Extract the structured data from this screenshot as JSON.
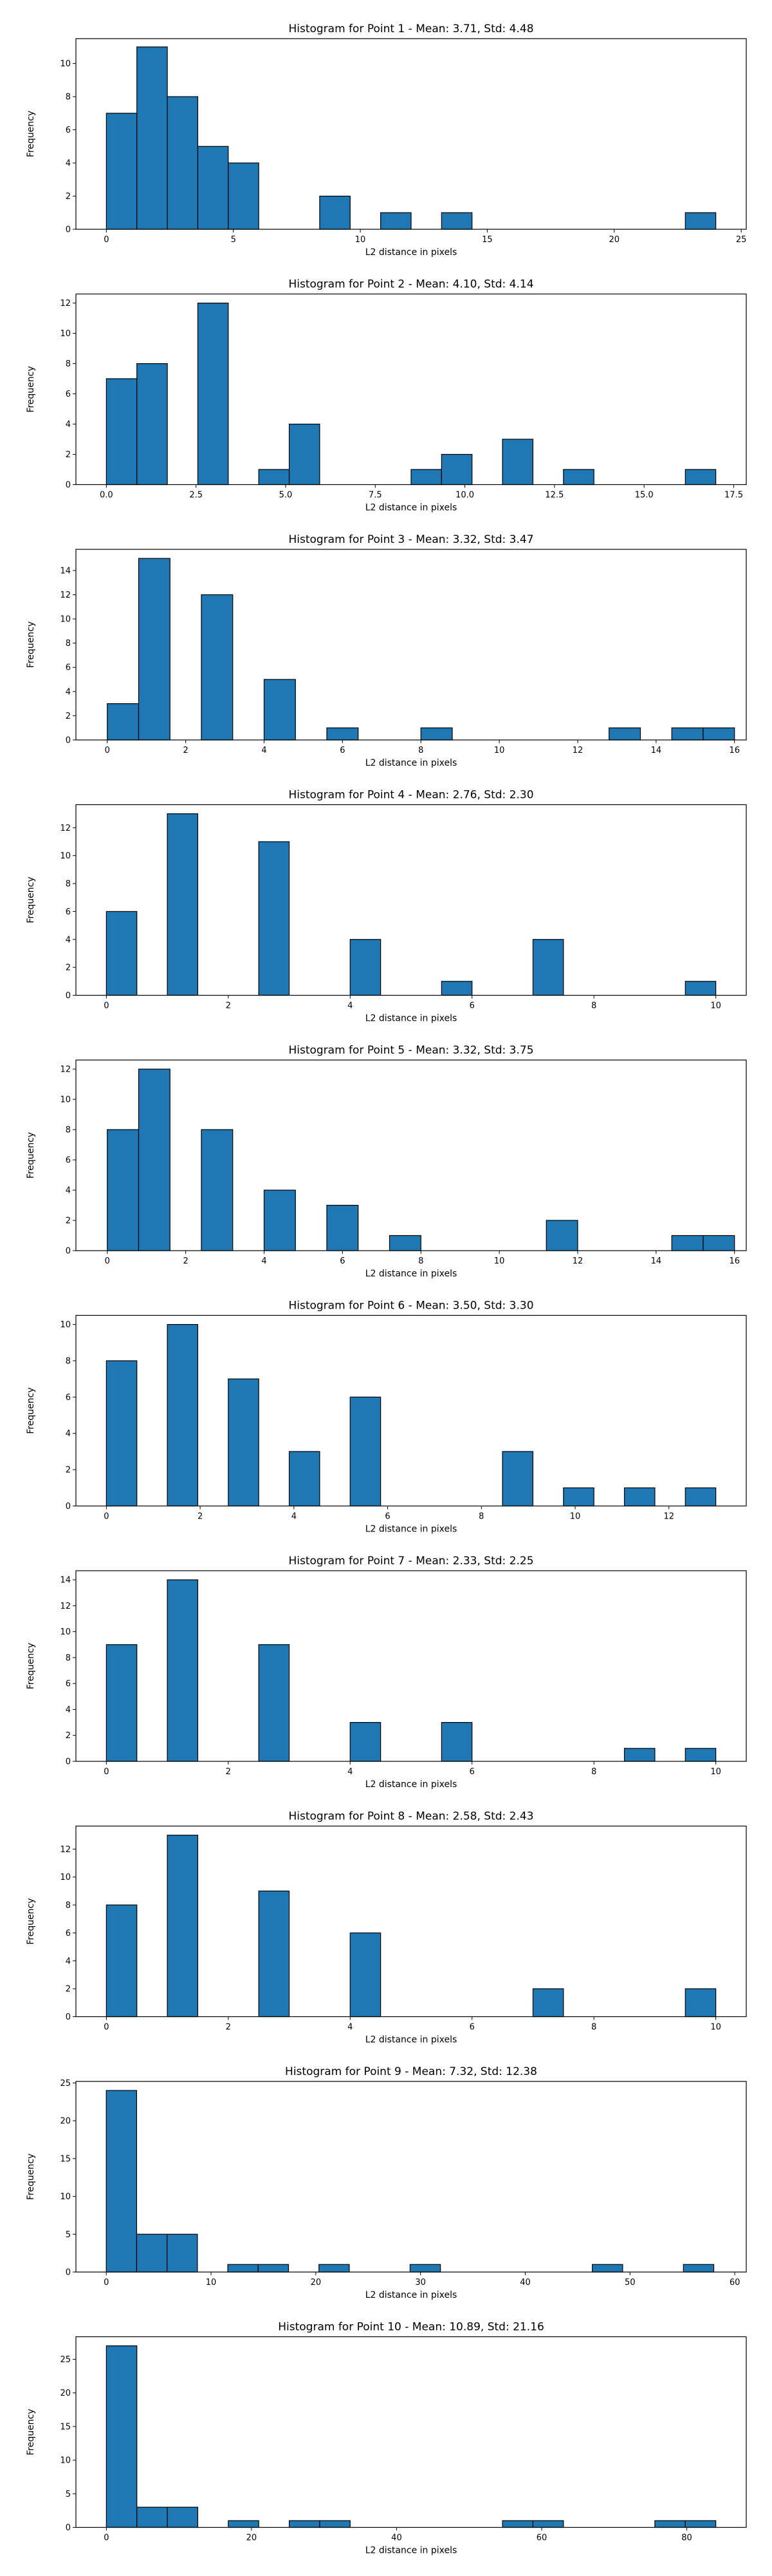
{
  "chart_data": [
    {
      "type": "bar",
      "title": "Histogram for Point 1 - Mean: 3.71, Std: 4.48",
      "xlabel": "L2 distance in pixels",
      "ylabel": "Frequency",
      "xlim": [
        -1.2,
        25.2
      ],
      "ylim": [
        0,
        11.5
      ],
      "xticks": [
        0,
        5,
        10,
        15,
        20,
        25
      ],
      "xtick_labels": [
        "0",
        "5",
        "10",
        "15",
        "20",
        "25"
      ],
      "yticks": [
        0,
        2,
        4,
        6,
        8,
        10
      ],
      "bin_width": 1.2,
      "bars": [
        {
          "x0": 0.0,
          "value": 7
        },
        {
          "x0": 1.2,
          "value": 11
        },
        {
          "x0": 2.4,
          "value": 8
        },
        {
          "x0": 3.6,
          "value": 5
        },
        {
          "x0": 4.8,
          "value": 4
        },
        {
          "x0": 8.4,
          "value": 2
        },
        {
          "x0": 10.8,
          "value": 1
        },
        {
          "x0": 13.2,
          "value": 1
        },
        {
          "x0": 22.8,
          "value": 1
        }
      ]
    },
    {
      "type": "bar",
      "title": "Histogram for Point 2 - Mean: 4.10, Std: 4.14",
      "xlabel": "L2 distance in pixels",
      "ylabel": "Frequency",
      "xlim": [
        -0.85,
        17.85
      ],
      "ylim": [
        0,
        12.6
      ],
      "xticks": [
        0,
        2.5,
        5,
        7.5,
        10,
        12.5,
        15,
        17.5
      ],
      "xtick_labels": [
        "0.0",
        "2.5",
        "5.0",
        "7.5",
        "10.0",
        "12.5",
        "15.0",
        "17.5"
      ],
      "yticks": [
        0,
        2,
        4,
        6,
        8,
        10,
        12
      ],
      "bin_width": 0.85,
      "bars": [
        {
          "x0": 0.0,
          "value": 7
        },
        {
          "x0": 0.85,
          "value": 8
        },
        {
          "x0": 2.55,
          "value": 12
        },
        {
          "x0": 4.25,
          "value": 1
        },
        {
          "x0": 5.1,
          "value": 4
        },
        {
          "x0": 8.5,
          "value": 1
        },
        {
          "x0": 9.35,
          "value": 2
        },
        {
          "x0": 11.05,
          "value": 3
        },
        {
          "x0": 12.75,
          "value": 1
        },
        {
          "x0": 16.15,
          "value": 1
        }
      ]
    },
    {
      "type": "bar",
      "title": "Histogram for Point 3 - Mean: 3.32, Std: 3.47",
      "xlabel": "L2 distance in pixels",
      "ylabel": "Frequency",
      "xlim": [
        -0.8,
        16.3
      ],
      "ylim": [
        0,
        15.75
      ],
      "xticks": [
        0,
        2,
        4,
        6,
        8,
        10,
        12,
        14,
        16
      ],
      "xtick_labels": [
        "0",
        "2",
        "4",
        "6",
        "8",
        "10",
        "12",
        "14",
        "16"
      ],
      "yticks": [
        0,
        2,
        4,
        6,
        8,
        10,
        12,
        14
      ],
      "bin_width": 0.8,
      "bars": [
        {
          "x0": 0.0,
          "value": 3
        },
        {
          "x0": 0.8,
          "value": 15
        },
        {
          "x0": 2.4,
          "value": 12
        },
        {
          "x0": 4.0,
          "value": 5
        },
        {
          "x0": 5.6,
          "value": 1
        },
        {
          "x0": 8.0,
          "value": 1
        },
        {
          "x0": 12.8,
          "value": 1
        },
        {
          "x0": 14.4,
          "value": 1
        },
        {
          "x0": 15.2,
          "value": 1
        }
      ]
    },
    {
      "type": "bar",
      "title": "Histogram for Point 4 - Mean: 2.76, Std: 2.30",
      "xlabel": "L2 distance in pixels",
      "ylabel": "Frequency",
      "xlim": [
        -0.5,
        10.5
      ],
      "ylim": [
        0,
        13.65
      ],
      "xticks": [
        0,
        2,
        4,
        6,
        8,
        10
      ],
      "xtick_labels": [
        "0",
        "2",
        "4",
        "6",
        "8",
        "10"
      ],
      "yticks": [
        0,
        2,
        4,
        6,
        8,
        10,
        12
      ],
      "bin_width": 0.5,
      "bars": [
        {
          "x0": 0.0,
          "value": 6
        },
        {
          "x0": 1.0,
          "value": 13
        },
        {
          "x0": 2.5,
          "value": 11
        },
        {
          "x0": 4.0,
          "value": 4
        },
        {
          "x0": 5.5,
          "value": 1
        },
        {
          "x0": 7.0,
          "value": 4
        },
        {
          "x0": 9.5,
          "value": 1
        }
      ]
    },
    {
      "type": "bar",
      "title": "Histogram for Point 5 - Mean: 3.32, Std: 3.75",
      "xlabel": "L2 distance in pixels",
      "ylabel": "Frequency",
      "xlim": [
        -0.8,
        16.3
      ],
      "ylim": [
        0,
        12.6
      ],
      "xticks": [
        0,
        2,
        4,
        6,
        8,
        10,
        12,
        14,
        16
      ],
      "xtick_labels": [
        "0",
        "2",
        "4",
        "6",
        "8",
        "10",
        "12",
        "14",
        "16"
      ],
      "yticks": [
        0,
        2,
        4,
        6,
        8,
        10,
        12
      ],
      "bin_width": 0.8,
      "bars": [
        {
          "x0": 0.0,
          "value": 8
        },
        {
          "x0": 0.8,
          "value": 12
        },
        {
          "x0": 2.4,
          "value": 8
        },
        {
          "x0": 4.0,
          "value": 4
        },
        {
          "x0": 5.6,
          "value": 3
        },
        {
          "x0": 7.2,
          "value": 1
        },
        {
          "x0": 11.2,
          "value": 2
        },
        {
          "x0": 14.4,
          "value": 1
        },
        {
          "x0": 15.2,
          "value": 1
        }
      ]
    },
    {
      "type": "bar",
      "title": "Histogram for Point 6 - Mean: 3.50, Std: 3.30",
      "xlabel": "L2 distance in pixels",
      "ylabel": "Frequency",
      "xlim": [
        -0.65,
        13.65
      ],
      "ylim": [
        0,
        10.5
      ],
      "xticks": [
        0,
        2,
        4,
        6,
        8,
        10,
        12
      ],
      "xtick_labels": [
        "0",
        "2",
        "4",
        "6",
        "8",
        "10",
        "12"
      ],
      "yticks": [
        0,
        2,
        4,
        6,
        8,
        10
      ],
      "bin_width": 0.65,
      "bars": [
        {
          "x0": 0.0,
          "value": 8
        },
        {
          "x0": 1.3,
          "value": 10
        },
        {
          "x0": 2.6,
          "value": 7
        },
        {
          "x0": 3.9,
          "value": 3
        },
        {
          "x0": 5.2,
          "value": 6
        },
        {
          "x0": 8.45,
          "value": 3
        },
        {
          "x0": 9.75,
          "value": 1
        },
        {
          "x0": 11.05,
          "value": 1
        },
        {
          "x0": 12.35,
          "value": 1
        }
      ]
    },
    {
      "type": "bar",
      "title": "Histogram for Point 7 - Mean: 2.33, Std: 2.25",
      "xlabel": "L2 distance in pixels",
      "ylabel": "Frequency",
      "xlim": [
        -0.5,
        10.5
      ],
      "ylim": [
        0,
        14.7
      ],
      "xticks": [
        0,
        2,
        4,
        6,
        8,
        10
      ],
      "xtick_labels": [
        "0",
        "2",
        "4",
        "6",
        "8",
        "10"
      ],
      "yticks": [
        0,
        2,
        4,
        6,
        8,
        10,
        12,
        14
      ],
      "bin_width": 0.5,
      "bars": [
        {
          "x0": 0.0,
          "value": 9
        },
        {
          "x0": 1.0,
          "value": 14
        },
        {
          "x0": 2.5,
          "value": 9
        },
        {
          "x0": 4.0,
          "value": 3
        },
        {
          "x0": 5.5,
          "value": 3
        },
        {
          "x0": 8.5,
          "value": 1
        },
        {
          "x0": 9.5,
          "value": 1
        }
      ]
    },
    {
      "type": "bar",
      "title": "Histogram for Point 8 - Mean: 2.58, Std: 2.43",
      "xlabel": "L2 distance in pixels",
      "ylabel": "Frequency",
      "xlim": [
        -0.5,
        10.5
      ],
      "ylim": [
        0,
        13.65
      ],
      "xticks": [
        0,
        2,
        4,
        6,
        8,
        10
      ],
      "xtick_labels": [
        "0",
        "2",
        "4",
        "6",
        "8",
        "10"
      ],
      "yticks": [
        0,
        2,
        4,
        6,
        8,
        10,
        12
      ],
      "bin_width": 0.5,
      "bars": [
        {
          "x0": 0.0,
          "value": 8
        },
        {
          "x0": 1.0,
          "value": 13
        },
        {
          "x0": 2.5,
          "value": 9
        },
        {
          "x0": 4.0,
          "value": 6
        },
        {
          "x0": 7.0,
          "value": 2
        },
        {
          "x0": 9.5,
          "value": 2
        }
      ]
    },
    {
      "type": "bar",
      "title": "Histogram for Point 9 - Mean: 7.32, Std: 12.38",
      "xlabel": "L2 distance in pixels",
      "ylabel": "Frequency",
      "xlim": [
        -2.9,
        61.1
      ],
      "ylim": [
        0,
        25.2
      ],
      "xticks": [
        0,
        10,
        20,
        30,
        40,
        50,
        60
      ],
      "xtick_labels": [
        "0",
        "10",
        "20",
        "30",
        "40",
        "50",
        "60"
      ],
      "yticks": [
        0,
        5,
        10,
        15,
        20,
        25
      ],
      "bin_width": 2.9,
      "bars": [
        {
          "x0": 0.0,
          "value": 24
        },
        {
          "x0": 2.9,
          "value": 5
        },
        {
          "x0": 5.8,
          "value": 5
        },
        {
          "x0": 11.6,
          "value": 1
        },
        {
          "x0": 14.5,
          "value": 1
        },
        {
          "x0": 20.3,
          "value": 1
        },
        {
          "x0": 29.0,
          "value": 1
        },
        {
          "x0": 46.4,
          "value": 1
        },
        {
          "x0": 55.1,
          "value": 1
        }
      ]
    },
    {
      "type": "bar",
      "title": "Histogram for Point 10 - Mean: 10.89, Std: 21.16",
      "xlabel": "L2 distance in pixels",
      "ylabel": "Frequency",
      "xlim": [
        -4.2,
        88.2
      ],
      "ylim": [
        0,
        28.35
      ],
      "xticks": [
        0,
        20,
        40,
        60,
        80
      ],
      "xtick_labels": [
        "0",
        "20",
        "40",
        "60",
        "80"
      ],
      "yticks": [
        0,
        5,
        10,
        15,
        20,
        25
      ],
      "bin_width": 4.2,
      "bars": [
        {
          "x0": 0.0,
          "value": 27
        },
        {
          "x0": 4.2,
          "value": 3
        },
        {
          "x0": 8.4,
          "value": 3
        },
        {
          "x0": 16.8,
          "value": 1
        },
        {
          "x0": 25.2,
          "value": 1
        },
        {
          "x0": 29.4,
          "value": 1
        },
        {
          "x0": 54.6,
          "value": 1
        },
        {
          "x0": 58.8,
          "value": 1
        },
        {
          "x0": 75.6,
          "value": 1
        },
        {
          "x0": 79.8,
          "value": 1
        }
      ]
    }
  ]
}
